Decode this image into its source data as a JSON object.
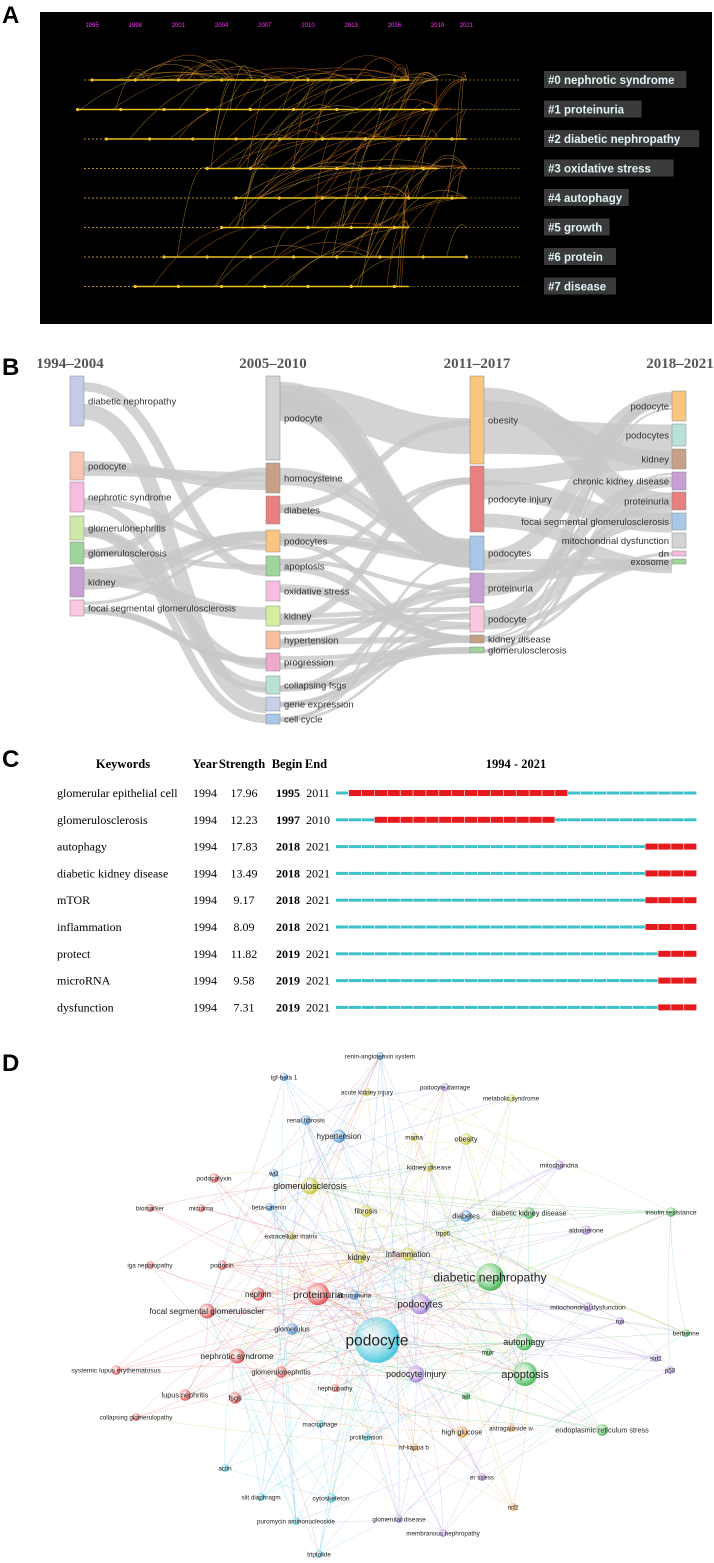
{
  "panels": {
    "a": "A",
    "b": "B",
    "c": "C",
    "d": "D"
  },
  "colors": {
    "timeline_bg": "#000000",
    "timeline_line": "#e8c020",
    "timeline_year": "#ff33ff",
    "burst_red": "#e41a1c",
    "burst_cyan": "#3ec1c9"
  },
  "chart_data": [
    {
      "type": "timeline",
      "title": "Cluster timeline view",
      "years": [
        "1995",
        "1998",
        "2001",
        "2004",
        "2007",
        "2010",
        "2013",
        "2016",
        "2019",
        "2021"
      ],
      "clusters": [
        {
          "label": "#0 nephrotic syndrome",
          "start": 1995,
          "end": 2017
        },
        {
          "label": "#1 proteinuria",
          "start": 1994,
          "end": 2019
        },
        {
          "label": "#2 diabetic nephropathy",
          "start": 1996,
          "end": 2021
        },
        {
          "label": "#3 oxidative stress",
          "start": 2003,
          "end": 2019
        },
        {
          "label": "#4 autophagy",
          "start": 2005,
          "end": 2021
        },
        {
          "label": "#5 growth",
          "start": 2004,
          "end": 2017
        },
        {
          "label": "#6 protein",
          "start": 2000,
          "end": 2021
        },
        {
          "label": "#7 disease",
          "start": 1998,
          "end": 2017
        }
      ]
    },
    {
      "type": "alluvial",
      "periods": [
        "1994–2004",
        "2005–2010",
        "2011–2017",
        "2018–2021"
      ],
      "columns": [
        [
          {
            "label": "diabetic nephropathy",
            "color": "#c5cbe6"
          },
          {
            "label": "podocyte",
            "color": "#f9c4b0"
          },
          {
            "label": "nephrotic syndrome",
            "color": "#f7bde0"
          },
          {
            "label": "glomerulonephritis",
            "color": "#cfe9a8"
          },
          {
            "label": "glomerulosclerosis",
            "color": "#9fd49a"
          },
          {
            "label": "kidney",
            "color": "#c9a0d6"
          },
          {
            "label": "focal segmental glomerulosclerosis",
            "color": "#f7c8de"
          }
        ],
        [
          {
            "label": "podocyte",
            "color": "#d4d4d4"
          },
          {
            "label": "homocysteine",
            "color": "#c8a088"
          },
          {
            "label": "diabetes",
            "color": "#e88080"
          },
          {
            "label": "podocytes",
            "color": "#f9c580"
          },
          {
            "label": "apoptosis",
            "color": "#9fd49a"
          },
          {
            "label": "oxidative stress",
            "color": "#f7bde0"
          },
          {
            "label": "kidney",
            "color": "#d6eda0"
          },
          {
            "label": "hypertension",
            "color": "#f9c0a0"
          },
          {
            "label": "progression",
            "color": "#f0a8cc"
          },
          {
            "label": "collapsing fsgs",
            "color": "#b8e2d8"
          },
          {
            "label": "gene expression",
            "color": "#c8cfe8"
          },
          {
            "label": "cell cycle",
            "color": "#a8c8e8"
          }
        ],
        [
          {
            "label": "obesity",
            "color": "#f9c580"
          },
          {
            "label": "podocyte injury",
            "color": "#e88080"
          },
          {
            "label": "podocytes",
            "color": "#a8c8e8"
          },
          {
            "label": "proteinuria",
            "color": "#c9a0d6"
          },
          {
            "label": "podocyte",
            "color": "#f7c8de"
          },
          {
            "label": "kidney disease",
            "color": "#c8a088"
          },
          {
            "label": "glomerulosclerosis",
            "color": "#9fd49a"
          }
        ],
        [
          {
            "label": "podocyte",
            "color": "#f9c580"
          },
          {
            "label": "podocytes",
            "color": "#b8e2d8"
          },
          {
            "label": "kidney",
            "color": "#c8a088"
          },
          {
            "label": "chronic kidney disease",
            "color": "#c9a0d6"
          },
          {
            "label": "proteinuria",
            "color": "#e88080"
          },
          {
            "label": "focal segmental glomerulosclerosis",
            "color": "#a8c8e8"
          },
          {
            "label": "mitochondrial dysfunction",
            "color": "#d4d4d4"
          },
          {
            "label": "dn",
            "color": "#f7bde0"
          },
          {
            "label": "exosome",
            "color": "#9fd49a"
          }
        ]
      ]
    },
    {
      "type": "table",
      "title": "1994 - 2021",
      "columns": [
        "Keywords",
        "Year",
        "Strength",
        "Begin",
        "End"
      ],
      "range": [
        1994,
        2021
      ],
      "rows": [
        {
          "keyword": "glomerular epithelial cell",
          "year": "1994",
          "strength": "17.96",
          "begin": "1995",
          "end": "2011"
        },
        {
          "keyword": "glomerulosclerosis",
          "year": "1994",
          "strength": "12.23",
          "begin": "1997",
          "end": "2010"
        },
        {
          "keyword": "autophagy",
          "year": "1994",
          "strength": "17.83",
          "begin": "2018",
          "end": "2021"
        },
        {
          "keyword": "diabetic kidney disease",
          "year": "1994",
          "strength": "13.49",
          "begin": "2018",
          "end": "2021"
        },
        {
          "keyword": "mTOR",
          "year": "1994",
          "strength": "9.17",
          "begin": "2018",
          "end": "2021"
        },
        {
          "keyword": "inflammation",
          "year": "1994",
          "strength": "8.09",
          "begin": "2018",
          "end": "2021"
        },
        {
          "keyword": "protect",
          "year": "1994",
          "strength": "11.82",
          "begin": "2019",
          "end": "2021"
        },
        {
          "keyword": "microRNA",
          "year": "1994",
          "strength": "9.58",
          "begin": "2019",
          "end": "2021"
        },
        {
          "keyword": "dysfunction",
          "year": "1994",
          "strength": "7.31",
          "begin": "2019",
          "end": "2021"
        }
      ]
    },
    {
      "type": "scatter",
      "title": "Keyword co-occurrence network",
      "nodes": [
        {
          "label": "renin-angiotensin system",
          "cluster": "blue",
          "size": 3
        },
        {
          "label": "tgf-beta 1",
          "cluster": "blue",
          "size": 3
        },
        {
          "label": "acute kidney injury",
          "cluster": "yellow",
          "size": 3
        },
        {
          "label": "podocyte damage",
          "cluster": "purple",
          "size": 3
        },
        {
          "label": "metabolic syndrome",
          "cluster": "yellow",
          "size": 3
        },
        {
          "label": "renal fibrosis",
          "cluster": "blue",
          "size": 4
        },
        {
          "label": "hypertension",
          "cluster": "blue",
          "size": 6
        },
        {
          "label": "mama",
          "cluster": "yellow",
          "size": 3
        },
        {
          "label": "obesity",
          "cluster": "yellow",
          "size": 5
        },
        {
          "label": "mitochondria",
          "cluster": "purple",
          "size": 4
        },
        {
          "label": "podocalyxin",
          "cluster": "red",
          "size": 4
        },
        {
          "label": "wt1",
          "cluster": "blue",
          "size": 3
        },
        {
          "label": "kidney disease",
          "cluster": "yellow",
          "size": 4
        },
        {
          "label": "glomerulosclerosis",
          "cluster": "yellow",
          "size": 8
        },
        {
          "label": "biomarker",
          "cluster": "red",
          "size": 3
        },
        {
          "label": "microrna",
          "cluster": "red",
          "size": 3
        },
        {
          "label": "beta-catenin",
          "cluster": "blue",
          "size": 3
        },
        {
          "label": "fibrosis",
          "cluster": "yellow",
          "size": 5
        },
        {
          "label": "diabetes",
          "cluster": "blue",
          "size": 5
        },
        {
          "label": "diabetic kidney disease",
          "cluster": "green",
          "size": 5
        },
        {
          "label": "insulin resistance",
          "cluster": "green",
          "size": 4
        },
        {
          "label": "aldosterone",
          "cluster": "purple",
          "size": 4
        },
        {
          "label": "trpc6",
          "cluster": "yellow",
          "size": 3
        },
        {
          "label": "extracellular matrix",
          "cluster": "yellow",
          "size": 3
        },
        {
          "label": "iga nephropathy",
          "cluster": "red",
          "size": 3
        },
        {
          "label": "podocin",
          "cluster": "red",
          "size": 4
        },
        {
          "label": "kidney",
          "cluster": "yellow",
          "size": 6
        },
        {
          "label": "inflammation",
          "cluster": "yellow",
          "size": 6
        },
        {
          "label": "diabetic nephropathy",
          "cluster": "green",
          "size": 14
        },
        {
          "label": "nephrin",
          "cluster": "red",
          "size": 6
        },
        {
          "label": "albuminuria",
          "cluster": "blue",
          "size": 4
        },
        {
          "label": "proteinuria",
          "cluster": "red",
          "size": 11
        },
        {
          "label": "podocytes",
          "cluster": "purple",
          "size": 10
        },
        {
          "label": "focal segmental glomeruloscler",
          "cluster": "red",
          "size": 7
        },
        {
          "label": "mitochondrial dysfunction",
          "cluster": "purple",
          "size": 4
        },
        {
          "label": "ros",
          "cluster": "purple",
          "size": 3
        },
        {
          "label": "glomerulus",
          "cluster": "blue",
          "size": 5
        },
        {
          "label": "podocyte",
          "cluster": "cyan",
          "size": 24
        },
        {
          "label": "autophagy",
          "cluster": "green",
          "size": 8
        },
        {
          "label": "berberine",
          "cluster": "green",
          "size": 3
        },
        {
          "label": "nephrotic syndrome",
          "cluster": "red",
          "size": 7
        },
        {
          "label": "mtor",
          "cluster": "green",
          "size": 3
        },
        {
          "label": "sirt1",
          "cluster": "purple",
          "size": 3
        },
        {
          "label": "p53",
          "cluster": "purple",
          "size": 3
        },
        {
          "label": "systemic lupus erythematosus",
          "cluster": "red",
          "size": 4
        },
        {
          "label": "glomerulonephritis",
          "cluster": "red",
          "size": 5
        },
        {
          "label": "podocyte injury",
          "cluster": "purple",
          "size": 8
        },
        {
          "label": "apoptosis",
          "cluster": "green",
          "size": 12
        },
        {
          "label": "lupus nephritis",
          "cluster": "red",
          "size": 5
        },
        {
          "label": "fsgs",
          "cluster": "red",
          "size": 5
        },
        {
          "label": "nephropathy",
          "cluster": "red",
          "size": 3
        },
        {
          "label": "akt",
          "cluster": "green",
          "size": 3
        },
        {
          "label": "collapsing glomerulopathy",
          "cluster": "red",
          "size": 3
        },
        {
          "label": "macrophage",
          "cluster": "cyan",
          "size": 3
        },
        {
          "label": "high glucose",
          "cluster": "orange",
          "size": 5
        },
        {
          "label": "astragaloside iv",
          "cluster": "orange",
          "size": 3
        },
        {
          "label": "endoplasmic reticulum stress",
          "cluster": "green",
          "size": 5
        },
        {
          "label": "proliferation",
          "cluster": "cyan",
          "size": 3
        },
        {
          "label": "nf-kappa b",
          "cluster": "orange",
          "size": 3
        },
        {
          "label": "actin",
          "cluster": "cyan",
          "size": 3
        },
        {
          "label": "er stress",
          "cluster": "purple",
          "size": 3
        },
        {
          "label": "slit diaphragm",
          "cluster": "cyan",
          "size": 3
        },
        {
          "label": "cytoskeleton",
          "cluster": "cyan",
          "size": 4
        },
        {
          "label": "nrf2",
          "cluster": "orange",
          "size": 3
        },
        {
          "label": "puromycin aminonucleoside",
          "cluster": "cyan",
          "size": 3
        },
        {
          "label": "glomerular disease",
          "cluster": "purple",
          "size": 3
        },
        {
          "label": "membranous nephropathy",
          "cluster": "purple",
          "size": 3
        },
        {
          "label": "triptolide",
          "cluster": "cyan",
          "size": 3
        }
      ]
    }
  ]
}
